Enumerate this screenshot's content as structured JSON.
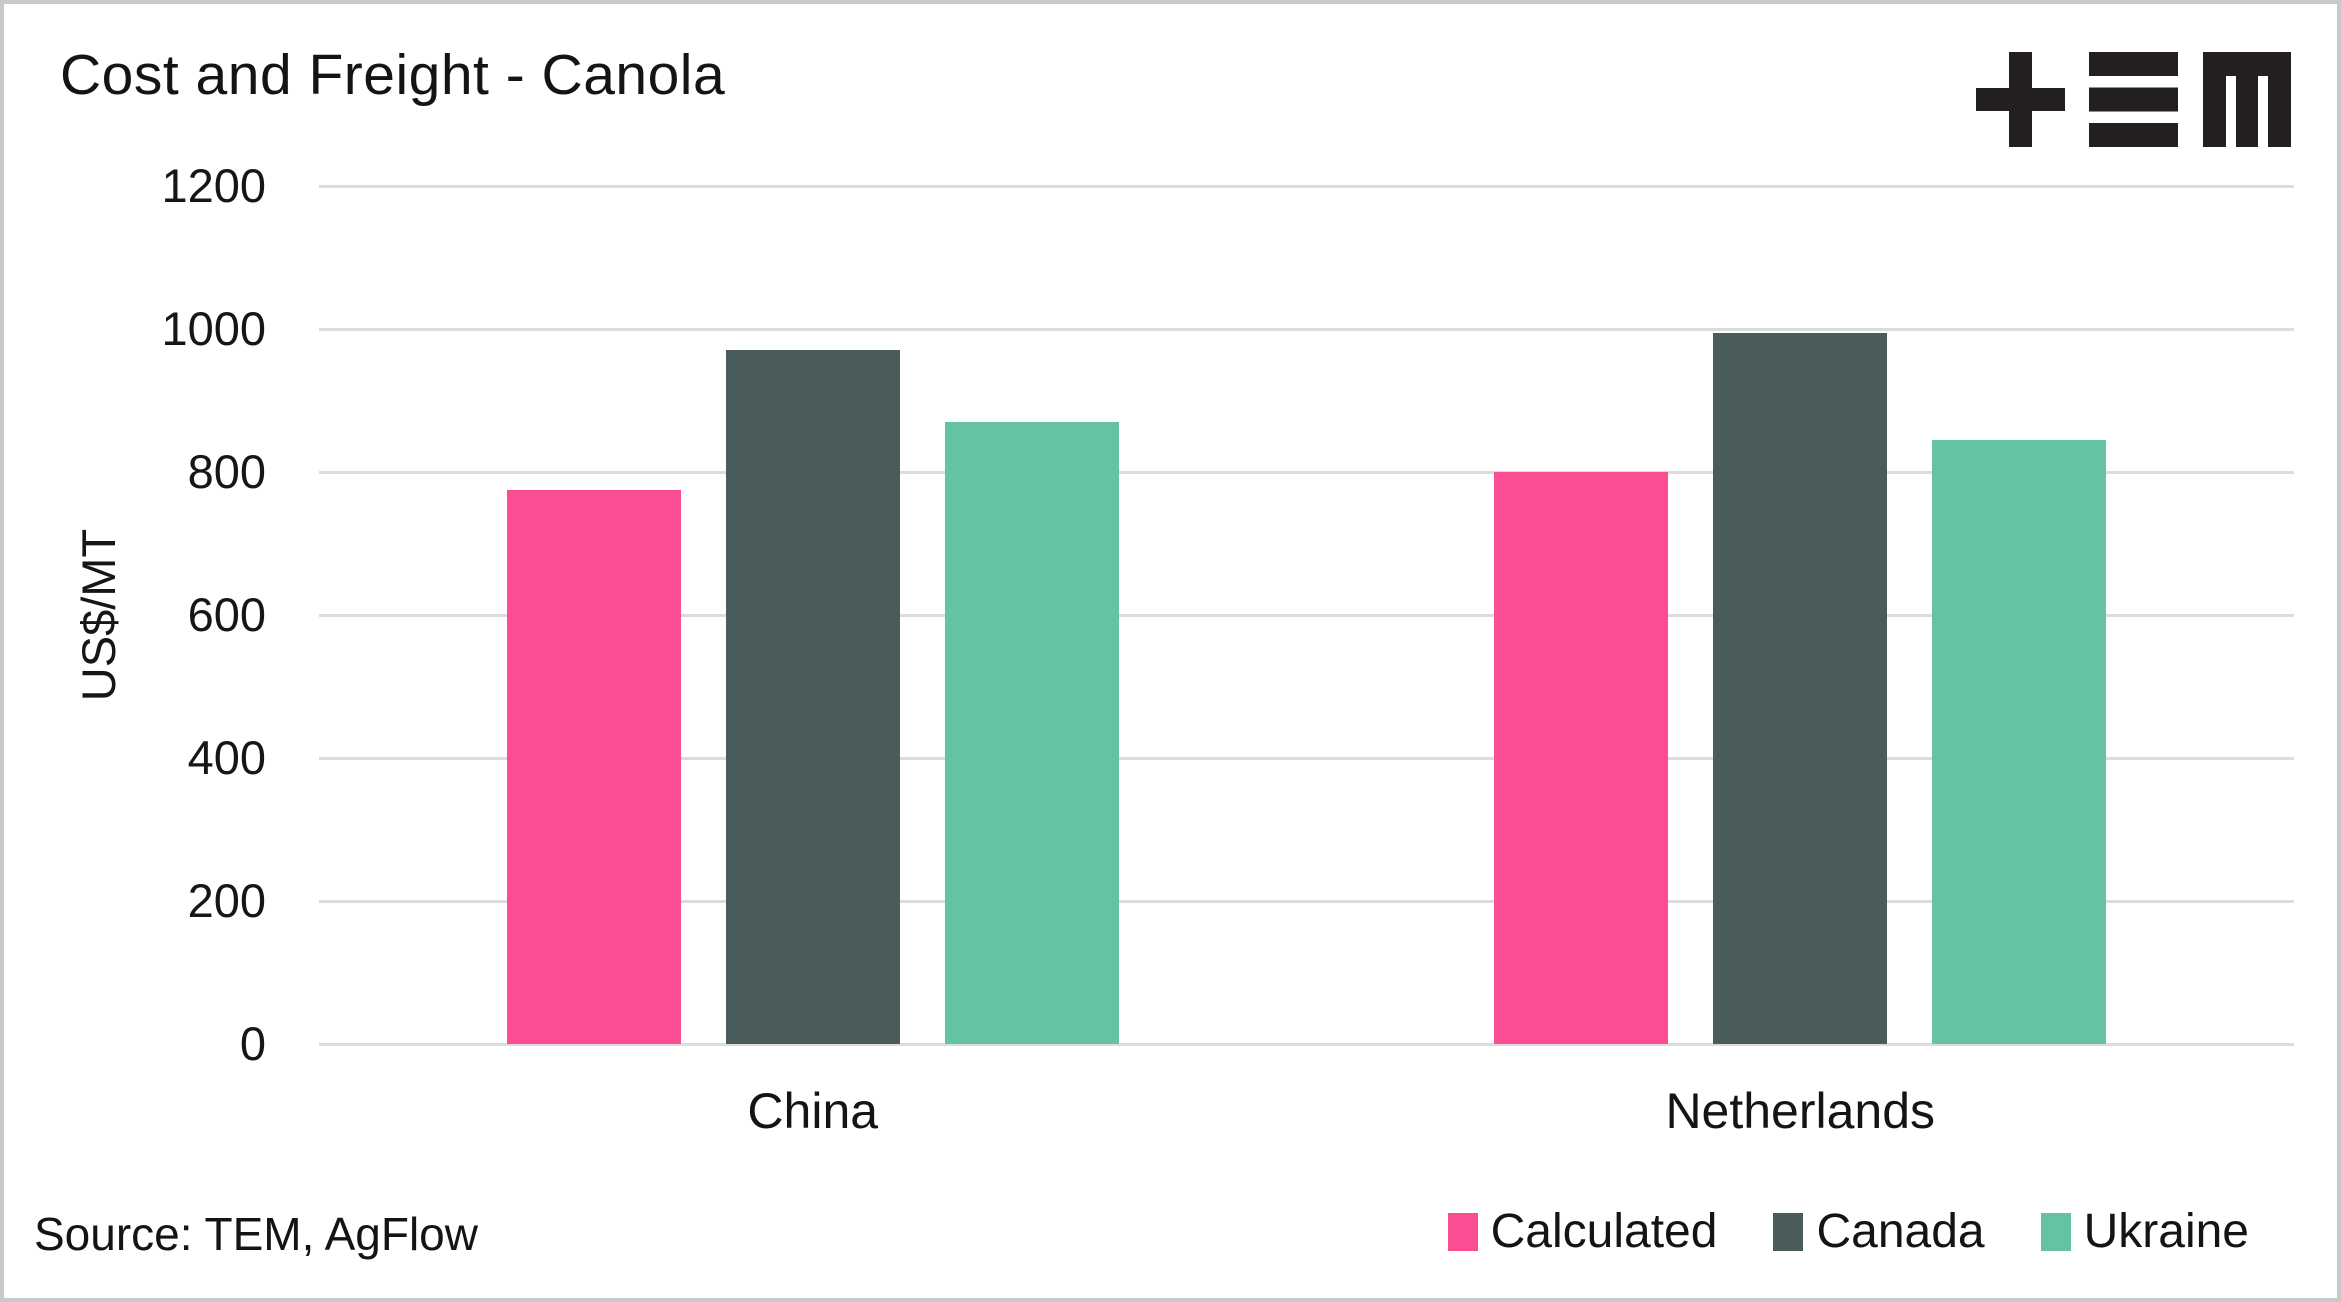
{
  "header": {
    "title": "Cost and Freight - Canola",
    "logo": "TEM"
  },
  "footer": {
    "source": "Source: TEM, AgFlow"
  },
  "colors": {
    "background": "#ffffff",
    "border": "#c9c9c9",
    "text": "#141414",
    "gridline": "#dcdcdc",
    "logo": "#231f20",
    "calculated_pink": "#fa4d93",
    "canada_slate": "#4a5b5b",
    "ukraine_teal": "#64c3a4"
  },
  "chart_data": {
    "type": "bar",
    "title": "Cost and Freight - Canola",
    "categories": [
      "China",
      "Netherlands"
    ],
    "series": [
      {
        "name": "Calculated",
        "color": "#fa4d93",
        "values": [
          775,
          800
        ]
      },
      {
        "name": "Canada",
        "color": "#4a5b5b",
        "values": [
          970,
          995
        ]
      },
      {
        "name": "Ukraine",
        "color": "#64c3a4",
        "values": [
          870,
          845
        ]
      }
    ],
    "xlabel": "",
    "ylabel": "US$/MT",
    "ylim": [
      0,
      1200
    ],
    "yticks": [
      0,
      200,
      400,
      600,
      800,
      1000,
      1200
    ],
    "grid": "horizontal",
    "legend_position": "bottom-right",
    "source": "Source: TEM, AgFlow"
  }
}
